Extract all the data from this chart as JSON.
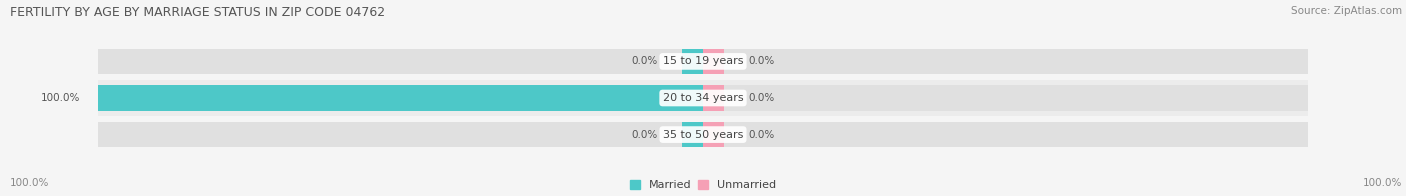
{
  "title": "FERTILITY BY AGE BY MARRIAGE STATUS IN ZIP CODE 04762",
  "source": "Source: ZipAtlas.com",
  "categories": [
    "15 to 19 years",
    "20 to 34 years",
    "35 to 50 years"
  ],
  "married_values": [
    0.0,
    100.0,
    0.0
  ],
  "unmarried_values": [
    0.0,
    0.0,
    0.0
  ],
  "married_color": "#4dc8c8",
  "unmarried_color": "#f5a0b5",
  "bar_bg_color": "#e0e0e0",
  "row_bg_even": "#ececec",
  "row_bg_odd": "#f5f5f5",
  "fig_bg_color": "#f5f5f5",
  "title_fontsize": 9,
  "source_fontsize": 7.5,
  "label_fontsize": 7.5,
  "cat_label_fontsize": 8,
  "x_min": -100,
  "x_max": 100,
  "bar_height": 0.7,
  "stub_size": 3.5,
  "left_axis_label": "100.0%",
  "right_axis_label": "100.0%"
}
